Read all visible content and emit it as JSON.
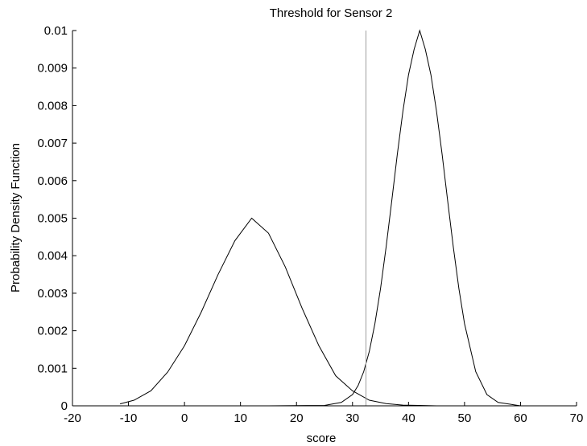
{
  "chart_data": {
    "type": "line",
    "title": "Threshold for Sensor 2",
    "xlabel": "score",
    "ylabel": "Probability Density Function",
    "xlim": [
      -20,
      70
    ],
    "ylim": [
      0,
      0.01
    ],
    "xticks": [
      -20,
      -10,
      0,
      10,
      20,
      30,
      40,
      50,
      60,
      70
    ],
    "xtick_labels": [
      "-20",
      "-10",
      "0",
      "10",
      "20",
      "30",
      "40",
      "50",
      "60",
      "70"
    ],
    "yticks": [
      0,
      0.001,
      0.002,
      0.003,
      0.004,
      0.005,
      0.006,
      0.007,
      0.008,
      0.009,
      0.01
    ],
    "ytick_labels": [
      "0",
      "0.001",
      "0.002",
      "0.003",
      "0.004",
      "0.005",
      "0.006",
      "0.007",
      "0.008",
      "0.009",
      "0.01"
    ],
    "grid": false,
    "series": [
      {
        "color": "#000000",
        "x": [
          -11.5,
          -9,
          -6,
          -3,
          0,
          3,
          6,
          9,
          12,
          15,
          18,
          21,
          24,
          27,
          30,
          33,
          36,
          39,
          42,
          45,
          48,
          51,
          54,
          57,
          60,
          64
        ],
        "y": [
          5e-05,
          0.00015,
          0.0004,
          0.0009,
          0.0016,
          0.0025,
          0.0035,
          0.0044,
          0.005,
          0.0046,
          0.0037,
          0.0026,
          0.0016,
          0.0008,
          0.0004,
          0.00015,
          6e-05,
          2e-05,
          1e-05,
          0,
          0,
          0,
          0,
          0,
          0,
          0
        ]
      },
      {
        "color": "#000000",
        "x": [
          5.5,
          15,
          25,
          28,
          30,
          31,
          32,
          33,
          34,
          35,
          36,
          37,
          38,
          39,
          40,
          41,
          42,
          43,
          44,
          45,
          46,
          47,
          48,
          49,
          50,
          52,
          54,
          56,
          60,
          64
        ],
        "y": [
          0,
          0,
          1e-05,
          9e-05,
          0.0003,
          0.00054,
          0.00091,
          0.00145,
          0.00219,
          0.00312,
          0.00423,
          0.00545,
          0.0067,
          0.00785,
          0.00882,
          0.0095,
          0.01,
          0.0095,
          0.00882,
          0.00785,
          0.0067,
          0.00545,
          0.00423,
          0.00312,
          0.00219,
          0.00091,
          0.0003,
          9e-05,
          0,
          0
        ]
      }
    ],
    "threshold": {
      "x": 32.4,
      "color": "#a0a0a0"
    }
  }
}
